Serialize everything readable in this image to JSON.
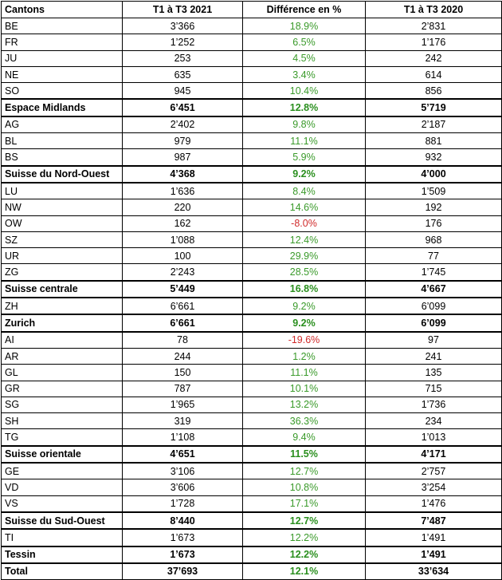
{
  "header": {
    "cantons": "Cantons",
    "t2021": "T1 à T3 2021",
    "diff": "Différence en %",
    "t2020": "T1 à T3 2020"
  },
  "rows": [
    {
      "name": "BE",
      "t2021": "3’366",
      "diff": "18.9%",
      "t2020": "2’831",
      "type": "canton",
      "sign": "pos"
    },
    {
      "name": "FR",
      "t2021": "1’252",
      "diff": "6.5%",
      "t2020": "1’176",
      "type": "canton",
      "sign": "pos"
    },
    {
      "name": "JU",
      "t2021": "253",
      "diff": "4.5%",
      "t2020": "242",
      "type": "canton",
      "sign": "pos"
    },
    {
      "name": "NE",
      "t2021": "635",
      "diff": "3.4%",
      "t2020": "614",
      "type": "canton",
      "sign": "pos"
    },
    {
      "name": "SO",
      "t2021": "945",
      "diff": "10.4%",
      "t2020": "856",
      "type": "canton",
      "sign": "pos"
    },
    {
      "name": "Espace Midlands",
      "t2021": "6’451",
      "diff": "12.8%",
      "t2020": "5’719",
      "type": "region",
      "sign": "pos"
    },
    {
      "name": "AG",
      "t2021": "2’402",
      "diff": "9.8%",
      "t2020": "2’187",
      "type": "canton",
      "sign": "pos"
    },
    {
      "name": "BL",
      "t2021": "979",
      "diff": "11.1%",
      "t2020": "881",
      "type": "canton",
      "sign": "pos"
    },
    {
      "name": "BS",
      "t2021": "987",
      "diff": "5.9%",
      "t2020": "932",
      "type": "canton",
      "sign": "pos"
    },
    {
      "name": "Suisse du Nord-Ouest",
      "t2021": "4’368",
      "diff": "9.2%",
      "t2020": "4’000",
      "type": "region",
      "sign": "pos"
    },
    {
      "name": "LU",
      "t2021": "1’636",
      "diff": "8.4%",
      "t2020": "1’509",
      "type": "canton",
      "sign": "pos"
    },
    {
      "name": "NW",
      "t2021": "220",
      "diff": "14.6%",
      "t2020": "192",
      "type": "canton",
      "sign": "pos"
    },
    {
      "name": "OW",
      "t2021": "162",
      "diff": "-8.0%",
      "t2020": "176",
      "type": "canton",
      "sign": "neg"
    },
    {
      "name": "SZ",
      "t2021": "1’088",
      "diff": "12.4%",
      "t2020": "968",
      "type": "canton",
      "sign": "pos"
    },
    {
      "name": "UR",
      "t2021": "100",
      "diff": "29.9%",
      "t2020": "77",
      "type": "canton",
      "sign": "pos"
    },
    {
      "name": "ZG",
      "t2021": "2’243",
      "diff": "28.5%",
      "t2020": "1’745",
      "type": "canton",
      "sign": "pos"
    },
    {
      "name": "Suisse centrale",
      "t2021": "5’449",
      "diff": "16.8%",
      "t2020": "4’667",
      "type": "region",
      "sign": "pos"
    },
    {
      "name": "ZH",
      "t2021": "6’661",
      "diff": "9.2%",
      "t2020": "6’099",
      "type": "canton",
      "sign": "pos"
    },
    {
      "name": "Zurich",
      "t2021": "6’661",
      "diff": "9.2%",
      "t2020": "6’099",
      "type": "region",
      "sign": "pos"
    },
    {
      "name": "AI",
      "t2021": "78",
      "diff": "-19.6%",
      "t2020": "97",
      "type": "canton",
      "sign": "neg"
    },
    {
      "name": "AR",
      "t2021": "244",
      "diff": "1.2%",
      "t2020": "241",
      "type": "canton",
      "sign": "pos"
    },
    {
      "name": "GL",
      "t2021": "150",
      "diff": "11.1%",
      "t2020": "135",
      "type": "canton",
      "sign": "pos"
    },
    {
      "name": "GR",
      "t2021": "787",
      "diff": "10.1%",
      "t2020": "715",
      "type": "canton",
      "sign": "pos"
    },
    {
      "name": "SG",
      "t2021": "1’965",
      "diff": "13.2%",
      "t2020": "1’736",
      "type": "canton",
      "sign": "pos"
    },
    {
      "name": "SH",
      "t2021": "319",
      "diff": "36.3%",
      "t2020": "234",
      "type": "canton",
      "sign": "pos"
    },
    {
      "name": "TG",
      "t2021": "1’108",
      "diff": "9.4%",
      "t2020": "1’013",
      "type": "canton",
      "sign": "pos"
    },
    {
      "name": "Suisse orientale",
      "t2021": "4’651",
      "diff": "11.5%",
      "t2020": "4’171",
      "type": "region",
      "sign": "pos"
    },
    {
      "name": "GE",
      "t2021": "3’106",
      "diff": "12.7%",
      "t2020": "2’757",
      "type": "canton",
      "sign": "pos"
    },
    {
      "name": "VD",
      "t2021": "3’606",
      "diff": "10.8%",
      "t2020": "3’254",
      "type": "canton",
      "sign": "pos"
    },
    {
      "name": "VS",
      "t2021": "1’728",
      "diff": "17.1%",
      "t2020": "1’476",
      "type": "canton",
      "sign": "pos"
    },
    {
      "name": "Suisse du Sud-Ouest",
      "t2021": "8’440",
      "diff": "12.7%",
      "t2020": "7’487",
      "type": "region",
      "sign": "pos"
    },
    {
      "name": "TI",
      "t2021": "1’673",
      "diff": "12.2%",
      "t2020": "1’491",
      "type": "canton",
      "sign": "pos"
    },
    {
      "name": "Tessin",
      "t2021": "1’673",
      "diff": "12.2%",
      "t2020": "1’491",
      "type": "region",
      "sign": "pos"
    },
    {
      "name": "Total",
      "t2021": "37’693",
      "diff": "12.1%",
      "t2020": "33’634",
      "type": "total",
      "sign": "pos"
    }
  ],
  "colors": {
    "positive": "#3a9a2a",
    "negative": "#d02a2a"
  }
}
